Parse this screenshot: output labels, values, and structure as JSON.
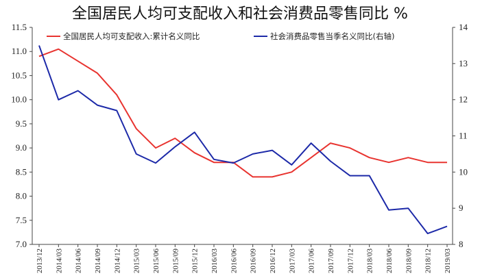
{
  "chart_data": {
    "type": "line",
    "title": "全国居民人均可支配收入和社会消费品零售同比 %",
    "categories": [
      "2013/12",
      "2014/03",
      "2014/06",
      "2014/09",
      "2014/12",
      "2015/03",
      "2015/06",
      "2015/09",
      "2015/12",
      "2016/03",
      "2016/06",
      "2016/09",
      "2016/12",
      "2017/03",
      "2017/06",
      "2017/09",
      "2017/12",
      "2018/03",
      "2018/06",
      "2018/09",
      "2018/12",
      "2019/03"
    ],
    "left_axis": {
      "ylim": [
        7.0,
        11.5
      ],
      "ticks": [
        "7.0",
        "7.5",
        "8.0",
        "8.5",
        "9.0",
        "9.5",
        "10.0",
        "10.5",
        "11.0",
        "11.5"
      ]
    },
    "right_axis": {
      "ylim": [
        8,
        14
      ],
      "ticks": [
        "8",
        "9",
        "10",
        "11",
        "12",
        "13",
        "14"
      ]
    },
    "grid": false,
    "legend_position": "top",
    "series": [
      {
        "name": "全国居民人均可支配收入:累计名义同比",
        "axis": "left",
        "color": "#e8332f",
        "values": [
          10.9,
          11.05,
          10.8,
          10.55,
          10.1,
          9.4,
          9.0,
          9.2,
          8.9,
          8.7,
          8.7,
          8.4,
          8.4,
          8.5,
          8.8,
          9.1,
          9.0,
          8.8,
          8.7,
          8.8,
          8.7,
          8.7
        ]
      },
      {
        "name": "社会消费品零售当季名义同比(右轴)",
        "axis": "right",
        "color": "#1c29a8",
        "values": [
          13.5,
          12.0,
          12.25,
          11.85,
          11.7,
          10.5,
          10.25,
          10.7,
          11.1,
          10.35,
          10.25,
          10.5,
          10.6,
          10.2,
          10.8,
          10.3,
          9.9,
          9.9,
          8.95,
          9.0,
          8.3,
          8.5
        ]
      }
    ]
  }
}
